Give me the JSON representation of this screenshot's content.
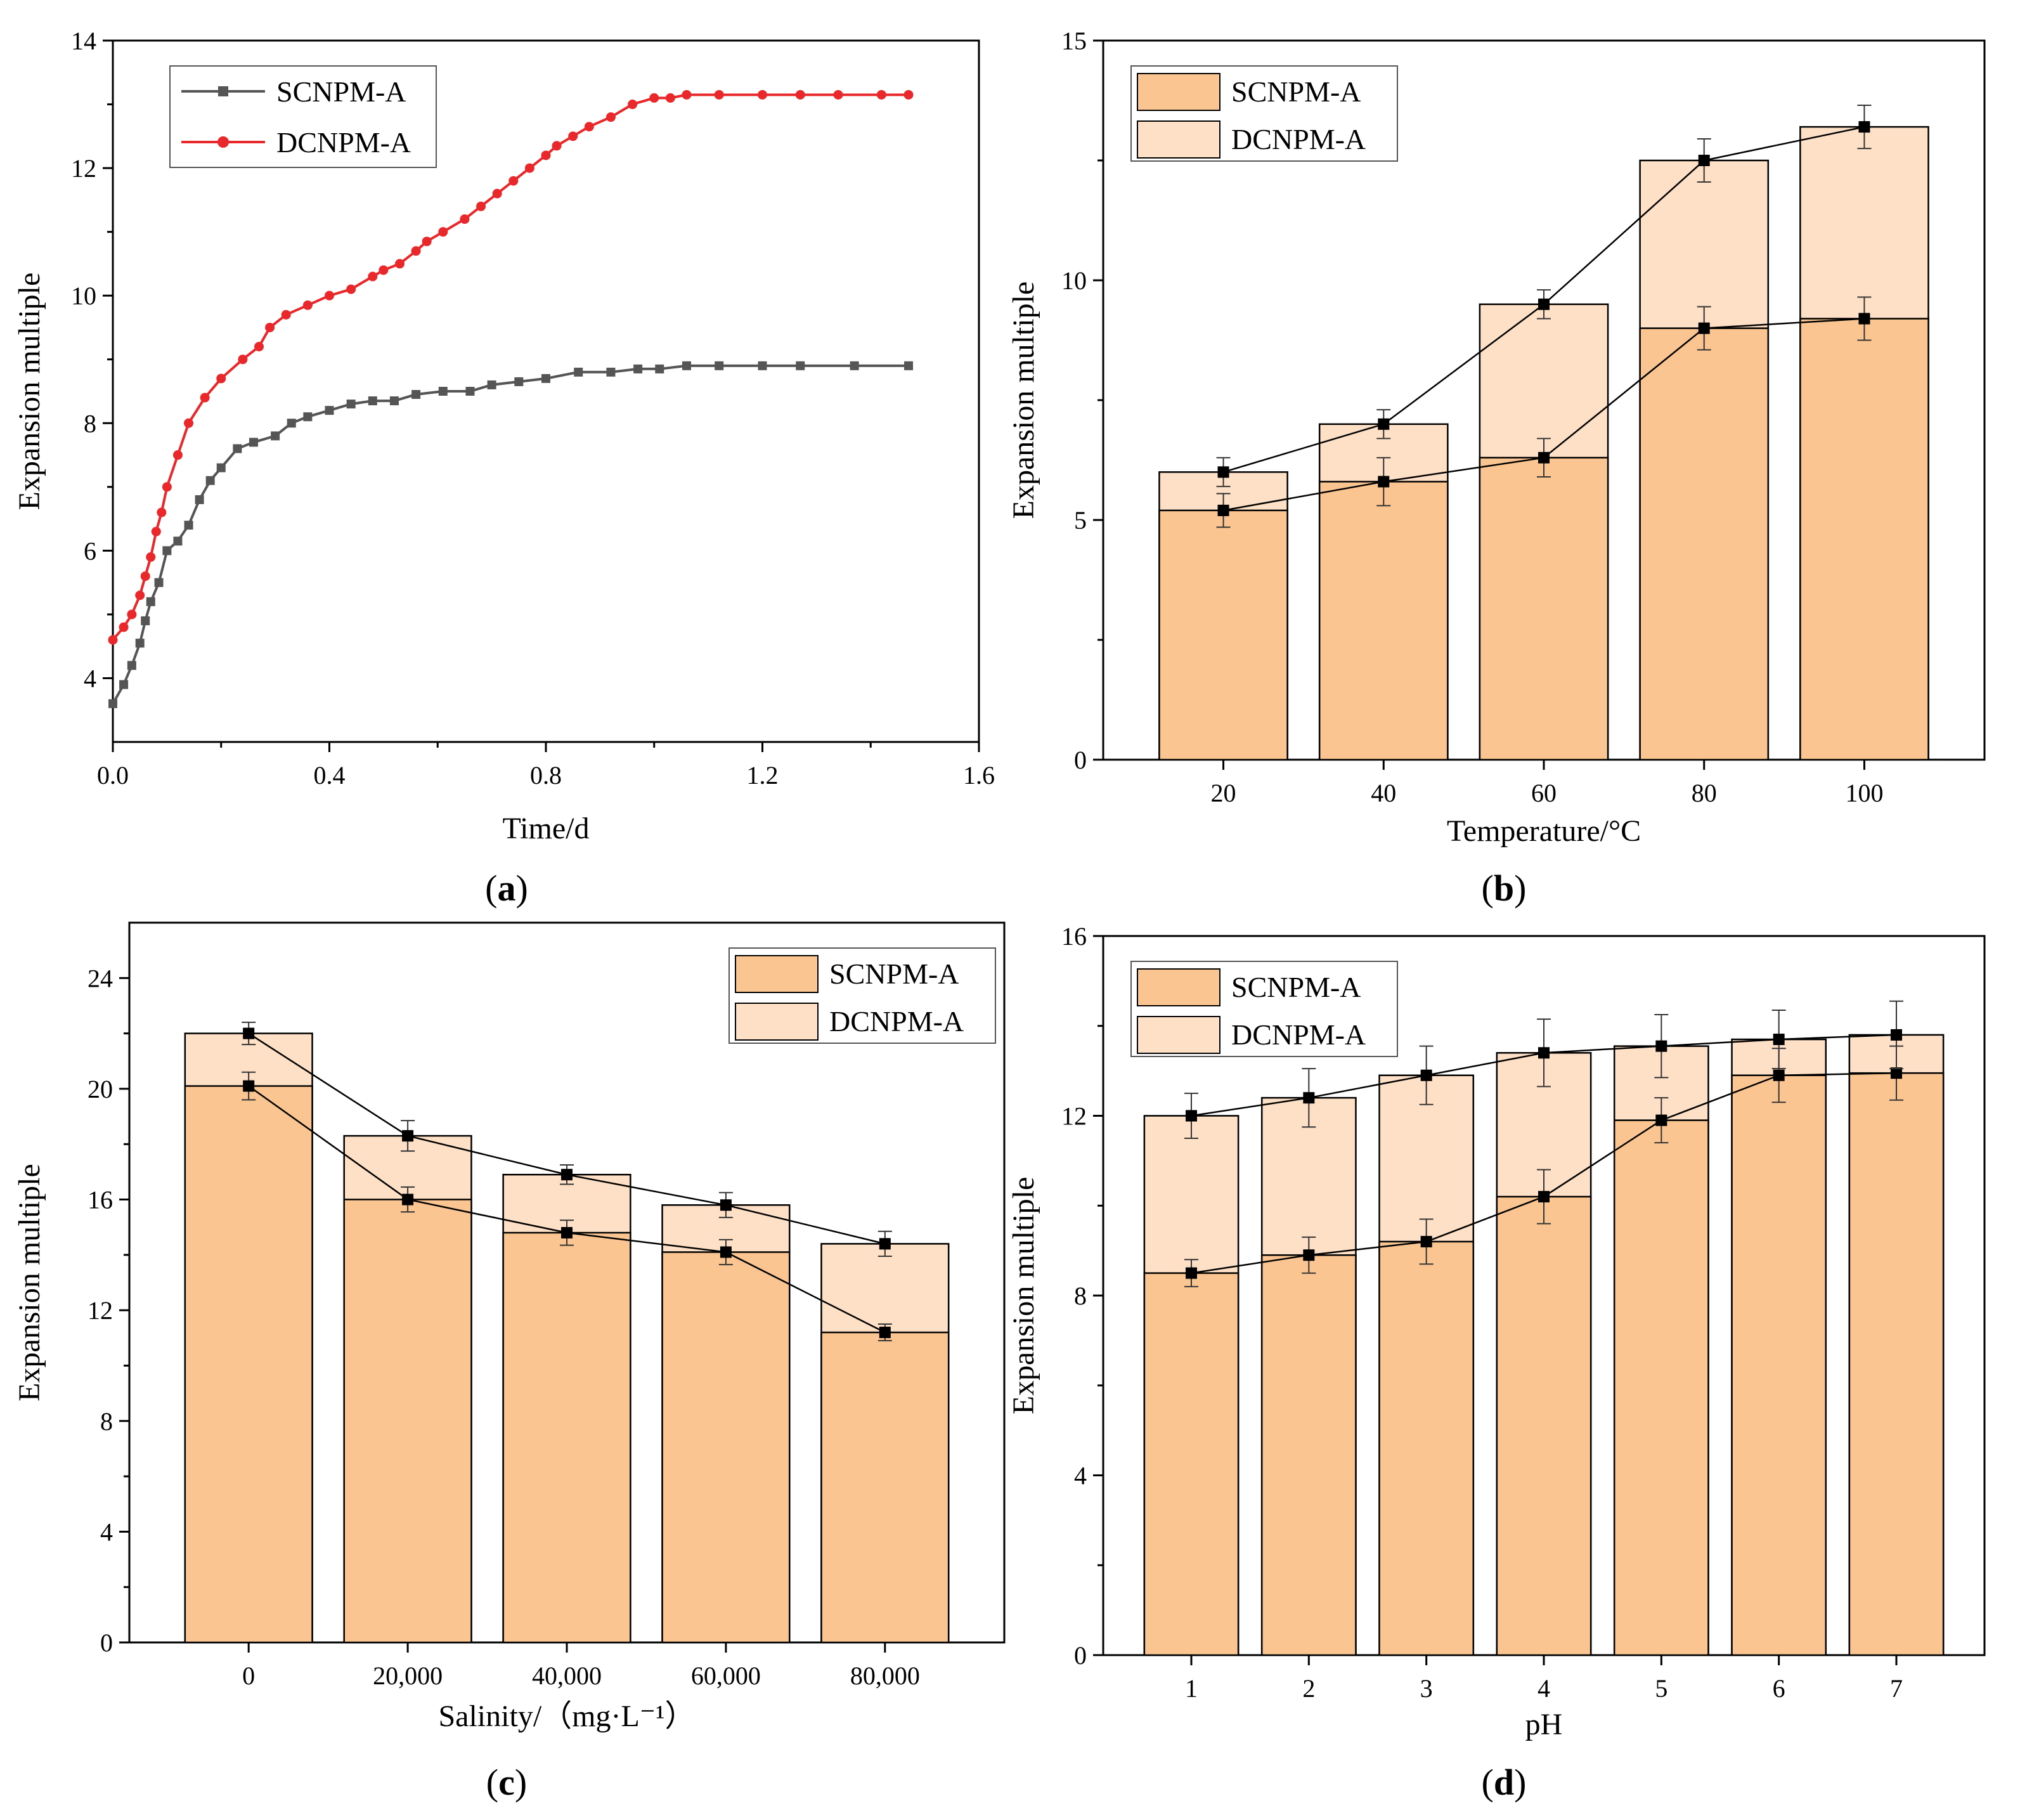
{
  "colors": {
    "scnpm_line": "#555555",
    "dcnpm_line": "#e8282b",
    "scnpm_bar": "#fbc591",
    "dcnpm_bar": "#fde0c6",
    "marker": "#000000"
  },
  "chart_data": [
    {
      "panel": "a",
      "type": "line",
      "xlabel": "Time/d",
      "ylabel": "Expansion multiple",
      "xlim": [
        0,
        1.6
      ],
      "ylim": [
        3,
        14
      ],
      "xticks": [
        "0.0",
        "0.4",
        "0.8",
        "1.2",
        "1.6"
      ],
      "yticks": [
        "4",
        "6",
        "8",
        "10",
        "12",
        "14"
      ],
      "legend_position": "top-left",
      "series": [
        {
          "name": "SCNPM-A",
          "color_key": "scnpm_line",
          "marker": "square",
          "x": [
            0,
            0.02,
            0.035,
            0.05,
            0.06,
            0.07,
            0.085,
            0.1,
            0.12,
            0.14,
            0.16,
            0.18,
            0.2,
            0.23,
            0.26,
            0.3,
            0.33,
            0.36,
            0.4,
            0.44,
            0.48,
            0.52,
            0.56,
            0.61,
            0.66,
            0.7,
            0.75,
            0.8,
            0.86,
            0.92,
            0.97,
            1.01,
            1.06,
            1.12,
            1.2,
            1.27,
            1.37,
            1.47
          ],
          "y": [
            3.6,
            3.9,
            4.2,
            4.55,
            4.9,
            5.2,
            5.5,
            6.0,
            6.15,
            6.4,
            6.8,
            7.1,
            7.3,
            7.6,
            7.7,
            7.8,
            8.0,
            8.1,
            8.2,
            8.3,
            8.35,
            8.35,
            8.45,
            8.5,
            8.5,
            8.6,
            8.65,
            8.7,
            8.8,
            8.8,
            8.85,
            8.85,
            8.9,
            8.9,
            8.9,
            8.9,
            8.9,
            8.9
          ]
        },
        {
          "name": "DCNPM-A",
          "color_key": "dcnpm_line",
          "marker": "circle",
          "x": [
            0,
            0.02,
            0.035,
            0.05,
            0.06,
            0.07,
            0.08,
            0.09,
            0.1,
            0.12,
            0.14,
            0.17,
            0.2,
            0.24,
            0.27,
            0.29,
            0.32,
            0.36,
            0.4,
            0.44,
            0.48,
            0.5,
            0.53,
            0.56,
            0.58,
            0.61,
            0.65,
            0.68,
            0.71,
            0.74,
            0.77,
            0.8,
            0.82,
            0.85,
            0.88,
            0.92,
            0.96,
            1.0,
            1.03,
            1.06,
            1.12,
            1.2,
            1.27,
            1.34,
            1.42,
            1.47
          ],
          "y": [
            4.6,
            4.8,
            5.0,
            5.3,
            5.6,
            5.9,
            6.3,
            6.6,
            7.0,
            7.5,
            8.0,
            8.4,
            8.7,
            9.0,
            9.2,
            9.5,
            9.7,
            9.85,
            10.0,
            10.1,
            10.3,
            10.4,
            10.5,
            10.7,
            10.85,
            11.0,
            11.2,
            11.4,
            11.6,
            11.8,
            12.0,
            12.2,
            12.35,
            12.5,
            12.65,
            12.8,
            13.0,
            13.1,
            13.1,
            13.15,
            13.15,
            13.15,
            13.15,
            13.15,
            13.15,
            13.15
          ]
        }
      ]
    },
    {
      "panel": "b",
      "type": "bar",
      "xlabel": "Temperature/°C",
      "ylabel": "Expansion multiple",
      "ylim": [
        0,
        15
      ],
      "yticks": [
        "0",
        "5",
        "10",
        "15"
      ],
      "categories": [
        "20",
        "40",
        "60",
        "80",
        "100"
      ],
      "legend_position": "top-left",
      "series": [
        {
          "name": "SCNPM-A",
          "color_key": "scnpm_bar",
          "values": [
            5.2,
            5.8,
            6.3,
            9.0,
            9.2
          ],
          "errors": [
            0.35,
            0.5,
            0.4,
            0.45,
            0.45
          ]
        },
        {
          "name": "DCNPM-A",
          "color_key": "dcnpm_bar",
          "values": [
            6.0,
            7.0,
            9.5,
            12.5,
            13.2
          ],
          "errors": [
            0.3,
            0.3,
            0.3,
            0.45,
            0.45
          ]
        }
      ]
    },
    {
      "panel": "c",
      "type": "bar",
      "xlabel": "Salinity/（mg·L⁻¹）",
      "ylabel": "Expansion multiple",
      "ylim": [
        0,
        26
      ],
      "yticks": [
        "0",
        "4",
        "8",
        "12",
        "16",
        "20",
        "24"
      ],
      "categories": [
        "0",
        "20,000",
        "40,000",
        "60,000",
        "80,000"
      ],
      "legend_position": "top-right",
      "series": [
        {
          "name": "SCNPM-A",
          "color_key": "scnpm_bar",
          "values": [
            20.1,
            16.0,
            14.8,
            14.1,
            11.2
          ],
          "errors": [
            0.5,
            0.45,
            0.45,
            0.45,
            0.3
          ]
        },
        {
          "name": "DCNPM-A",
          "color_key": "dcnpm_bar",
          "values": [
            22.0,
            18.3,
            16.9,
            15.8,
            14.4
          ],
          "errors": [
            0.4,
            0.55,
            0.35,
            0.45,
            0.45
          ]
        }
      ]
    },
    {
      "panel": "d",
      "type": "bar",
      "xlabel": "pH",
      "ylabel": "Expansion multiple",
      "ylim": [
        0,
        16
      ],
      "yticks": [
        "0",
        "4",
        "8",
        "12",
        "16"
      ],
      "categories": [
        "1",
        "2",
        "3",
        "4",
        "5",
        "6",
        "7"
      ],
      "legend_position": "top-left",
      "series": [
        {
          "name": "SCNPM-A",
          "color_key": "scnpm_bar",
          "values": [
            8.5,
            8.9,
            9.2,
            10.2,
            11.9,
            12.9,
            12.95
          ],
          "errors": [
            0.3,
            0.4,
            0.5,
            0.6,
            0.5,
            0.6,
            0.6
          ]
        },
        {
          "name": "DCNPM-A",
          "color_key": "dcnpm_bar",
          "values": [
            12.0,
            12.4,
            12.9,
            13.4,
            13.55,
            13.7,
            13.8
          ],
          "errors": [
            0.5,
            0.65,
            0.65,
            0.75,
            0.7,
            0.65,
            0.75
          ]
        }
      ]
    }
  ],
  "panel_labels": [
    {
      "open": "(",
      "letter": "a",
      "close": ")"
    },
    {
      "open": "(",
      "letter": "b",
      "close": ")"
    },
    {
      "open": "(",
      "letter": "c",
      "close": ")"
    },
    {
      "open": "(",
      "letter": "d",
      "close": ")"
    }
  ]
}
